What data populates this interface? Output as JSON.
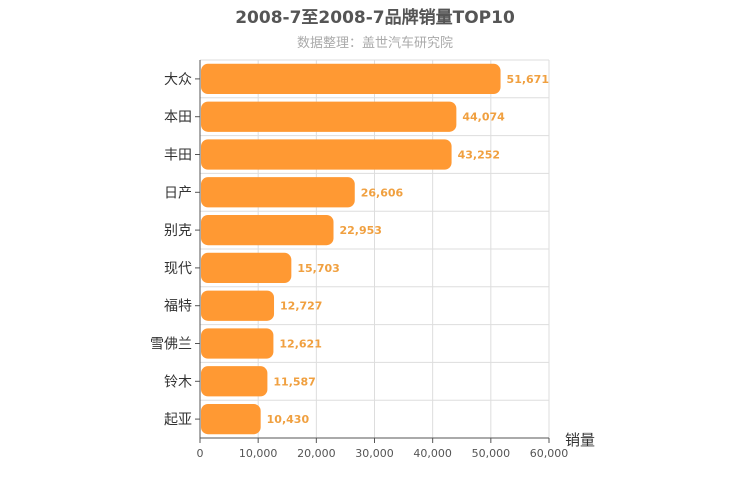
{
  "chart_data": {
    "type": "bar",
    "orientation": "horizontal",
    "title": "2008-7至2008-7品牌销量TOP10",
    "subtitle": "数据整理：盖世汽车研究院",
    "xlabel": "销量",
    "ylabel": "",
    "categories": [
      "大众",
      "本田",
      "丰田",
      "日产",
      "别克",
      "现代",
      "福特",
      "雪佛兰",
      "铃木",
      "起亚"
    ],
    "values": [
      51671,
      44074,
      43252,
      26606,
      22953,
      15703,
      12727,
      12621,
      11587,
      10430
    ],
    "value_labels": [
      "51,671",
      "44,074",
      "43,252",
      "26,606",
      "22,953",
      "15,703",
      "12,727",
      "12,621",
      "11,587",
      "10,430"
    ],
    "xlim": [
      0,
      60000
    ],
    "ticks": [
      "0",
      "10,000",
      "20,000",
      "30,000",
      "40,000",
      "50,000",
      "60,000"
    ],
    "grid": true,
    "bar_color": "#ff9933",
    "label_color": "#f0a040"
  }
}
